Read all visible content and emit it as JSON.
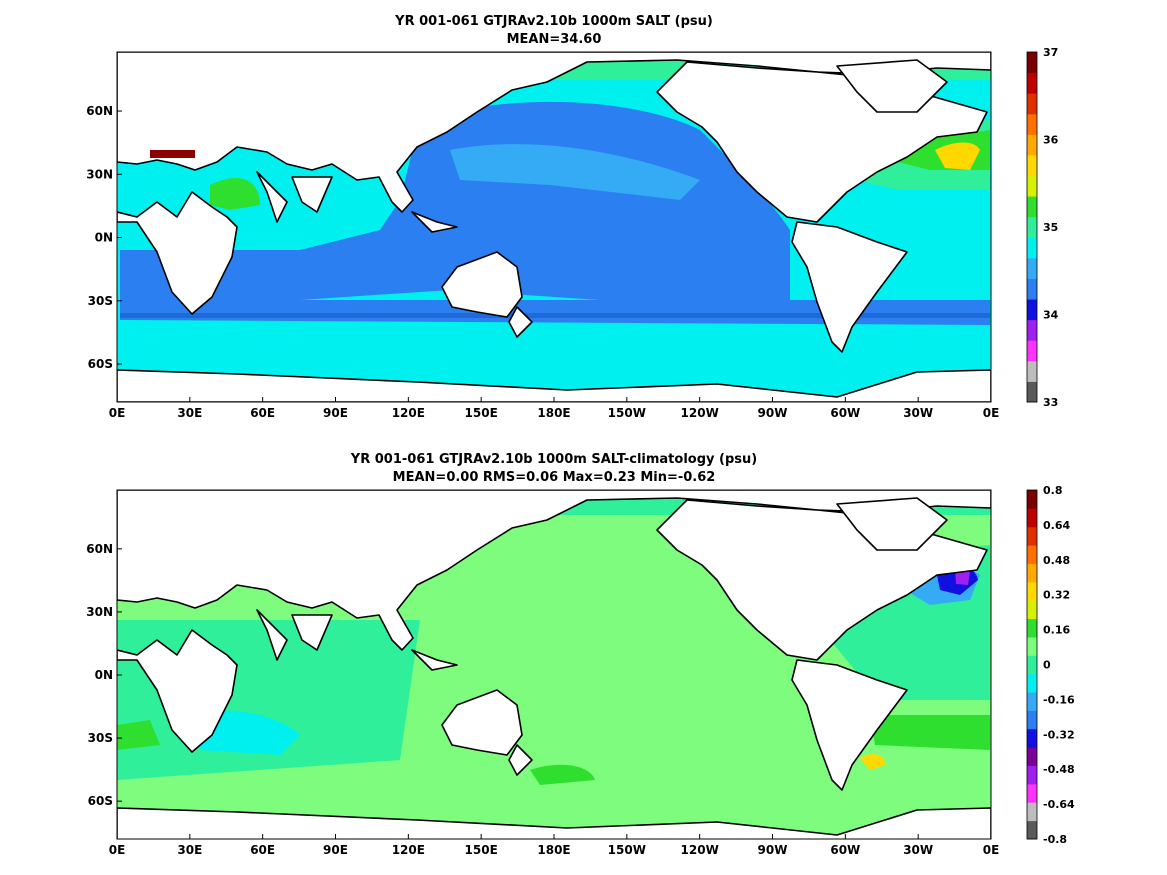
{
  "chart_data": [
    {
      "type": "heatmap",
      "title": "YR 001-061 GTJRAv2.10b 1000m SALT (psu)",
      "subtitle": "MEAN=34.60",
      "x_ticks": [
        "0E",
        "30E",
        "60E",
        "90E",
        "120E",
        "150E",
        "180E",
        "150W",
        "120W",
        "90W",
        "60W",
        "30W",
        "0E"
      ],
      "y_ticks": [
        "60N",
        "30N",
        "0N",
        "30S",
        "60S"
      ],
      "colorbar": {
        "labels": [
          "37",
          "36",
          "35",
          "34",
          "33"
        ],
        "colors": [
          "#5a5a5a",
          "#bdbdbd",
          "#ff33ff",
          "#a020f0",
          "#1010e0",
          "#2b7ff0",
          "#35aaf5",
          "#00f0f0",
          "#30ef9a",
          "#2fdf2f",
          "#d6f000",
          "#ffd800",
          "#ffaa00",
          "#ff7000",
          "#e03000",
          "#c00000",
          "#7a0000"
        ]
      }
    },
    {
      "type": "heatmap",
      "title": "YR 001-061 GTJRAv2.10b 1000m SALT-climatology (psu)",
      "subtitle": "MEAN=0.00   RMS=0.06   Max=0.23   Min=-0.62",
      "x_ticks": [
        "0E",
        "30E",
        "60E",
        "90E",
        "120E",
        "150E",
        "180E",
        "150W",
        "120W",
        "90W",
        "60W",
        "30W",
        "0E"
      ],
      "y_ticks": [
        "60N",
        "30N",
        "0N",
        "30S",
        "60S"
      ],
      "colorbar": {
        "labels": [
          "0.8",
          "0.64",
          "0.48",
          "0.32",
          "0.16",
          "0",
          "-0.16",
          "-0.32",
          "-0.48",
          "-0.64",
          "-0.8"
        ],
        "colors": [
          "#5a5a5a",
          "#bdbdbd",
          "#ff33ff",
          "#a020f0",
          "#7a0098",
          "#1010e0",
          "#2b7ff0",
          "#35aaf5",
          "#00f0f0",
          "#30ef9a",
          "#7dfc7d",
          "#2fdf2f",
          "#d6f000",
          "#ffd800",
          "#ffaa00",
          "#ff7000",
          "#e03000",
          "#c00000",
          "#7a0000"
        ]
      }
    }
  ]
}
